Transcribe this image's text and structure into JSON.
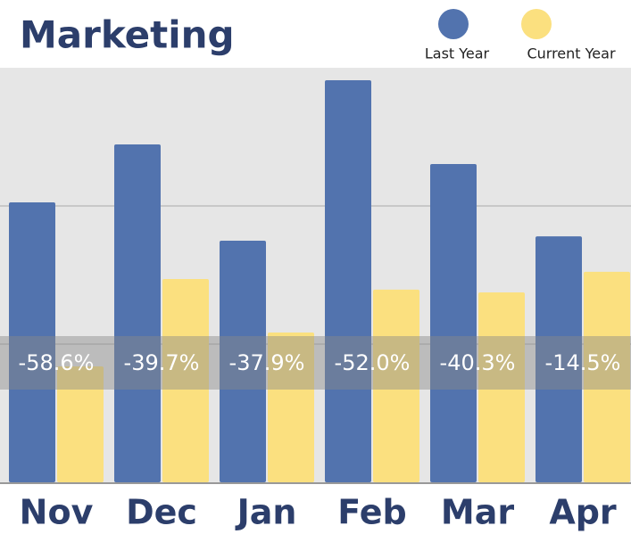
{
  "chart_data": {
    "type": "bar",
    "title": "Marketing",
    "categories": [
      "Nov",
      "Dec",
      "Jan",
      "Feb",
      "Mar",
      "Apr"
    ],
    "series": [
      {
        "name": "Last Year",
        "color": "#5273ae",
        "values": [
          202.6,
          244.5,
          174.8,
          291,
          230.3,
          178
        ]
      },
      {
        "name": "Current Year",
        "color": "#fbe07f",
        "values": [
          83.9,
          147.1,
          108.4,
          139.4,
          137.4,
          152.3
        ]
      }
    ],
    "change_labels": [
      "-58.6%",
      "-39.7%",
      "-37.9%",
      "-52.0%",
      "-40.3%",
      "-14.5%"
    ],
    "ylim": [
      0,
      300
    ],
    "gridlines": [
      100,
      200
    ]
  }
}
